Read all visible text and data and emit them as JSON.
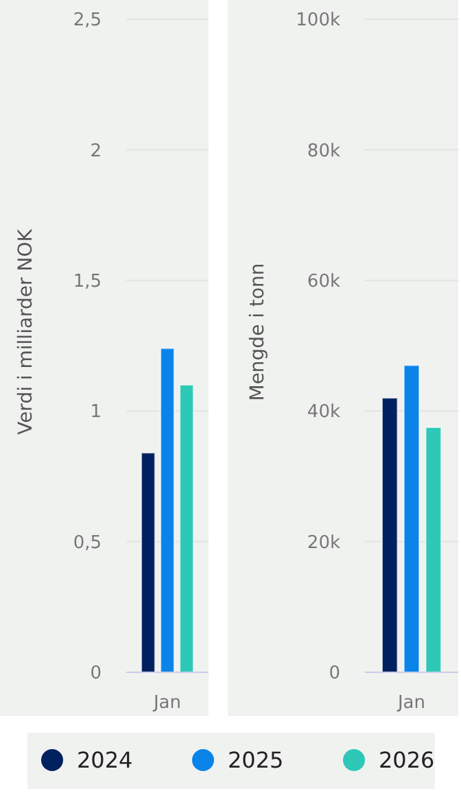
{
  "chart_data": [
    {
      "type": "bar",
      "ylabel": "Verdi i milliarder NOK",
      "categories": [
        "Jan"
      ],
      "series": [
        {
          "color": "#002060",
          "values": [
            0.84
          ]
        },
        {
          "color": "#0a84e8",
          "values": [
            1.24
          ]
        },
        {
          "color": "#2ec8b6",
          "values": [
            1.1
          ]
        }
      ],
      "ylim": [
        0,
        2.5
      ],
      "yticks": [
        0,
        {
          "value": 0.5,
          "label": "0,5"
        },
        1,
        {
          "value": 1.5,
          "label": "1,5"
        },
        2,
        {
          "value": 2.5,
          "label": "2,5"
        }
      ],
      "grid": "y",
      "legend": false
    },
    {
      "type": "bar",
      "ylabel": "Mengde i tonn",
      "categories": [
        "Jan"
      ],
      "series": [
        {
          "name": "2024",
          "color": "#002060",
          "values": [
            42000
          ]
        },
        {
          "name": "2025",
          "color": "#0a84e8",
          "values": [
            47000
          ]
        },
        {
          "name": "2026",
          "color": "#2ec8b6",
          "values": [
            37500
          ]
        }
      ],
      "ylim": [
        0,
        100000
      ],
      "yticks": [
        0,
        {
          "value": 20000,
          "label": "20k"
        },
        {
          "value": 40000,
          "label": "40k"
        },
        {
          "value": 60000,
          "label": "60k"
        },
        {
          "value": 80000,
          "label": "80k"
        },
        {
          "value": 100000,
          "label": "100k"
        }
      ],
      "grid": "y",
      "legend": "bottom"
    }
  ]
}
